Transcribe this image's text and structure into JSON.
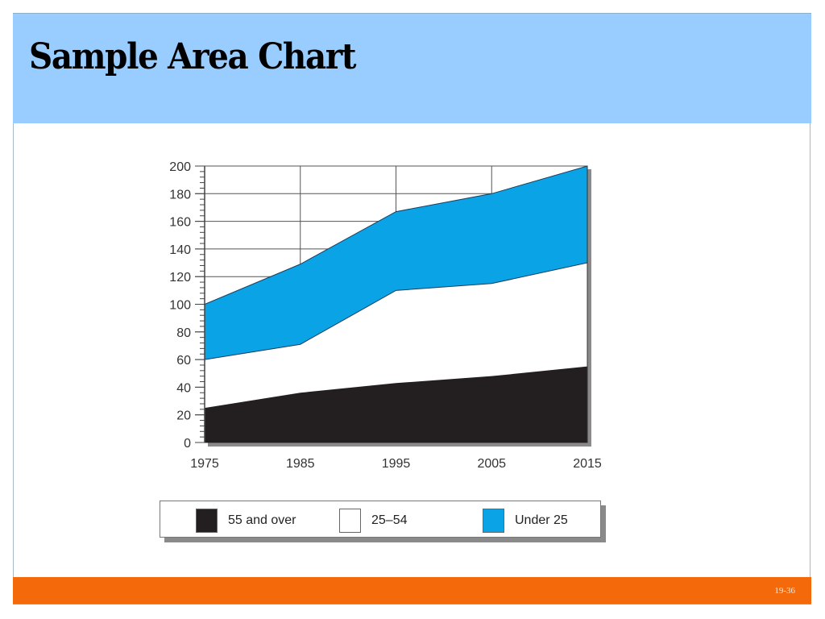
{
  "slide": {
    "title": "Sample Area Chart",
    "page_number": "19-36",
    "colors": {
      "header_bg": "#99ccff",
      "footer_bg": "#f4690a",
      "series_55_and_over": "#231f20",
      "series_25_54": "#ffffff",
      "series_under_25": "#0aa3e6"
    }
  },
  "legend": {
    "items": [
      {
        "label": "55 and over",
        "color": "#231f20"
      },
      {
        "label": "25–54",
        "color": "#ffffff"
      },
      {
        "label": "Under 25",
        "color": "#0aa3e6"
      }
    ]
  },
  "chart_data": {
    "type": "area",
    "stacked": true,
    "title": "Sample Area Chart",
    "xlabel": "",
    "ylabel": "",
    "x": [
      1975,
      1985,
      1995,
      2005,
      2015
    ],
    "categories": [
      "1975",
      "1985",
      "1995",
      "2005",
      "2015"
    ],
    "ylim": [
      0,
      200
    ],
    "y_ticks": [
      0,
      20,
      40,
      60,
      80,
      100,
      120,
      140,
      160,
      180,
      200
    ],
    "grid": true,
    "legend_position": "bottom",
    "series": [
      {
        "name": "55 and over",
        "values": [
          25,
          36,
          43,
          48,
          55
        ],
        "cumulative_top": [
          25,
          36,
          43,
          48,
          55
        ]
      },
      {
        "name": "25–54",
        "values": [
          35,
          35,
          67,
          67,
          75
        ],
        "cumulative_top": [
          60,
          71,
          110,
          115,
          130
        ]
      },
      {
        "name": "Under 25",
        "values": [
          40,
          58,
          57,
          65,
          70
        ],
        "cumulative_top": [
          100,
          129,
          167,
          180,
          200
        ]
      }
    ]
  }
}
